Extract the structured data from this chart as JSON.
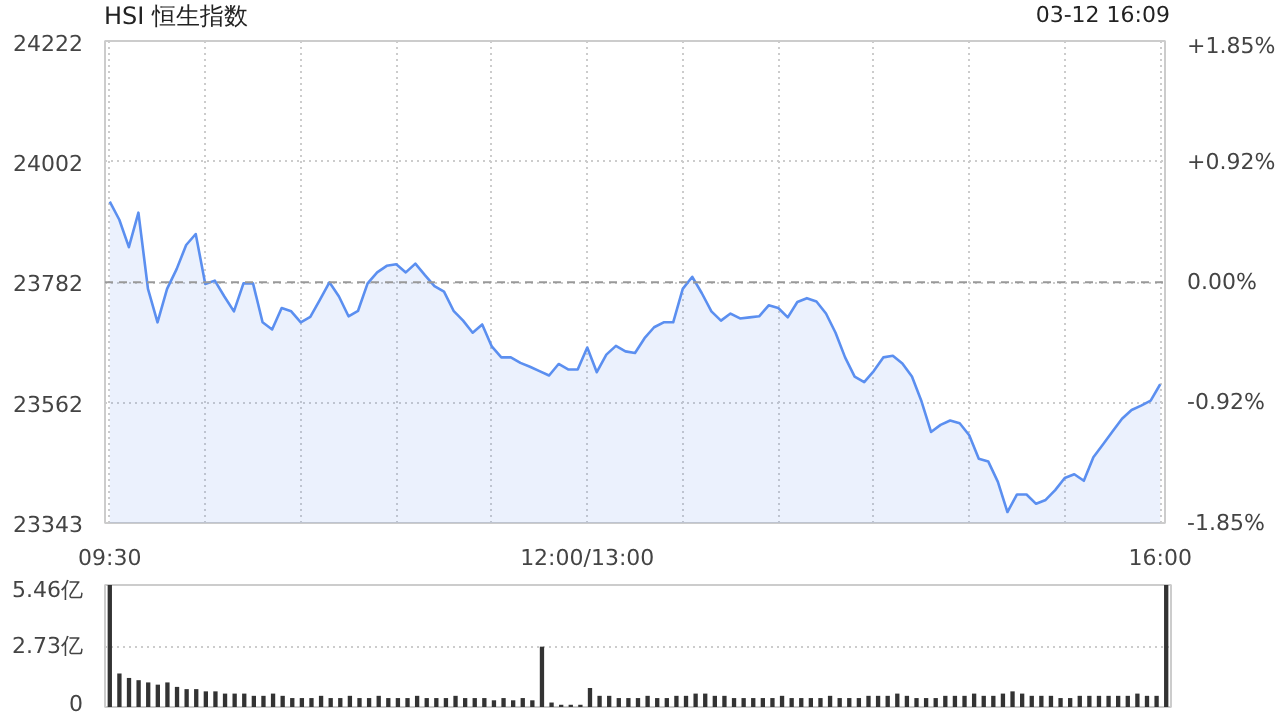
{
  "chart_data": [
    {
      "type": "area",
      "title": "HSI 恒生指数",
      "annotations": [
        "03-12 16:09"
      ],
      "categories": [
        "09:30",
        null,
        null,
        null,
        null,
        null,
        null,
        null,
        null,
        null,
        null,
        null,
        null,
        null,
        null,
        null,
        null,
        null,
        null,
        null,
        null,
        null,
        null,
        null,
        null,
        null,
        null,
        null,
        null,
        null,
        null,
        null,
        null,
        null,
        null,
        null,
        null,
        null,
        null,
        null,
        null,
        null,
        null,
        null,
        null,
        null,
        null,
        null,
        null,
        null,
        "12:00/13:00",
        null,
        null,
        null,
        null,
        null,
        null,
        null,
        null,
        null,
        null,
        null,
        null,
        null,
        null,
        null,
        null,
        null,
        null,
        null,
        null,
        null,
        null,
        null,
        null,
        null,
        null,
        null,
        null,
        null,
        null,
        null,
        null,
        null,
        null,
        null,
        null,
        null,
        null,
        null,
        null,
        null,
        null,
        null,
        null,
        null,
        null,
        null,
        null,
        null,
        null,
        null,
        null,
        null,
        null,
        null,
        null,
        null,
        null,
        null,
        "16:00"
      ],
      "series": [
        {
          "color": "#5b8ff0",
          "values": [
            23929,
            23896,
            23846,
            23909,
            23770,
            23709,
            23770,
            23806,
            23850,
            23870,
            23779,
            23785,
            23756,
            23729,
            23780,
            23780,
            23709,
            23696,
            23735,
            23729,
            23709,
            23719,
            23750,
            23782,
            23756,
            23720,
            23730,
            23780,
            23800,
            23812,
            23815,
            23800,
            23816,
            23795,
            23775,
            23765,
            23730,
            23712,
            23690,
            23705,
            23665,
            23645,
            23645,
            23635,
            23628,
            23620,
            23612,
            23633,
            23623,
            23623,
            23663,
            23618,
            23650,
            23666,
            23656,
            23653,
            23680,
            23700,
            23709,
            23709,
            23770,
            23792,
            23762,
            23729,
            23712,
            23725,
            23716,
            23718,
            23720,
            23740,
            23735,
            23718,
            23746,
            23753,
            23747,
            23725,
            23690,
            23645,
            23610,
            23600,
            23620,
            23645,
            23648,
            23634,
            23610,
            23565,
            23509,
            23522,
            23530,
            23525,
            23503,
            23460,
            23455,
            23418,
            23363,
            23395,
            23395,
            23378,
            23385,
            23403,
            23425,
            23432,
            23420,
            23463,
            23486,
            23510,
            23533,
            23549,
            23557,
            23566,
            23596
          ]
        }
      ],
      "ylim": [
        23343,
        24222
      ],
      "yticks": [
        23343,
        23562,
        23782,
        24002,
        24222
      ],
      "y2lim": [
        -1.85,
        1.85
      ],
      "y2ticks": [
        {
          "value": -1.85,
          "label": "-1.85%"
        },
        {
          "value": -0.92,
          "label": "-0.92%"
        },
        {
          "value": 0,
          "label": "0.00%"
        },
        {
          "value": 0.92,
          "label": "+0.92%"
        },
        {
          "value": 1.85,
          "label": "+1.85%"
        }
      ],
      "ref_lines": [
        {
          "axis": "y",
          "value": 23782,
          "color": "#999999",
          "line_style": "dashed"
        }
      ],
      "grid": true
    },
    {
      "type": "bar",
      "tick_labels": "y",
      "categories": [
        null,
        null,
        null,
        null,
        null,
        null,
        null,
        null,
        null,
        null,
        null,
        null,
        null,
        null,
        null,
        null,
        null,
        null,
        null,
        null,
        null,
        null,
        null,
        null,
        null,
        null,
        null,
        null,
        null,
        null,
        null,
        null,
        null,
        null,
        null,
        null,
        null,
        null,
        null,
        null,
        null,
        null,
        null,
        null,
        null,
        null,
        null,
        null,
        null,
        null,
        null,
        null,
        null,
        null,
        null,
        null,
        null,
        null,
        null,
        null,
        null,
        null,
        null,
        null,
        null,
        null,
        null,
        null,
        null,
        null,
        null,
        null,
        null,
        null,
        null,
        null,
        null,
        null,
        null,
        null,
        null,
        null,
        null,
        null,
        null,
        null,
        null,
        null,
        null,
        null,
        null,
        null,
        null,
        null,
        null,
        null,
        null,
        null,
        null,
        null,
        null,
        null,
        null,
        null,
        null,
        null,
        null,
        null,
        null,
        null,
        null
      ],
      "series": [
        {
          "color": "#333333",
          "values": [
            5.46,
            1.5,
            1.3,
            1.2,
            1.1,
            1.0,
            1.1,
            0.9,
            0.8,
            0.8,
            0.7,
            0.7,
            0.6,
            0.6,
            0.6,
            0.5,
            0.5,
            0.6,
            0.5,
            0.4,
            0.4,
            0.4,
            0.5,
            0.4,
            0.4,
            0.5,
            0.4,
            0.4,
            0.5,
            0.4,
            0.4,
            0.4,
            0.5,
            0.4,
            0.4,
            0.4,
            0.5,
            0.4,
            0.4,
            0.4,
            0.3,
            0.4,
            0.3,
            0.4,
            0.3,
            2.7,
            0.2,
            0.1,
            0.1,
            0.1,
            0.85,
            0.5,
            0.5,
            0.4,
            0.4,
            0.4,
            0.5,
            0.4,
            0.4,
            0.5,
            0.5,
            0.6,
            0.6,
            0.5,
            0.5,
            0.4,
            0.4,
            0.4,
            0.4,
            0.4,
            0.5,
            0.4,
            0.4,
            0.4,
            0.4,
            0.5,
            0.4,
            0.4,
            0.4,
            0.5,
            0.5,
            0.5,
            0.6,
            0.5,
            0.4,
            0.4,
            0.4,
            0.5,
            0.5,
            0.5,
            0.6,
            0.5,
            0.5,
            0.6,
            0.7,
            0.6,
            0.5,
            0.5,
            0.5,
            0.4,
            0.4,
            0.5,
            0.5,
            0.5,
            0.5,
            0.5,
            0.5,
            0.6,
            0.5,
            0.5,
            5.46
          ]
        }
      ],
      "ylim": [
        0,
        5.46
      ],
      "yticks": [
        0,
        {
          "value": 2.73,
          "label": "2.73亿"
        },
        {
          "value": 5.46,
          "label": "5.46亿"
        }
      ],
      "grid": "y"
    }
  ]
}
